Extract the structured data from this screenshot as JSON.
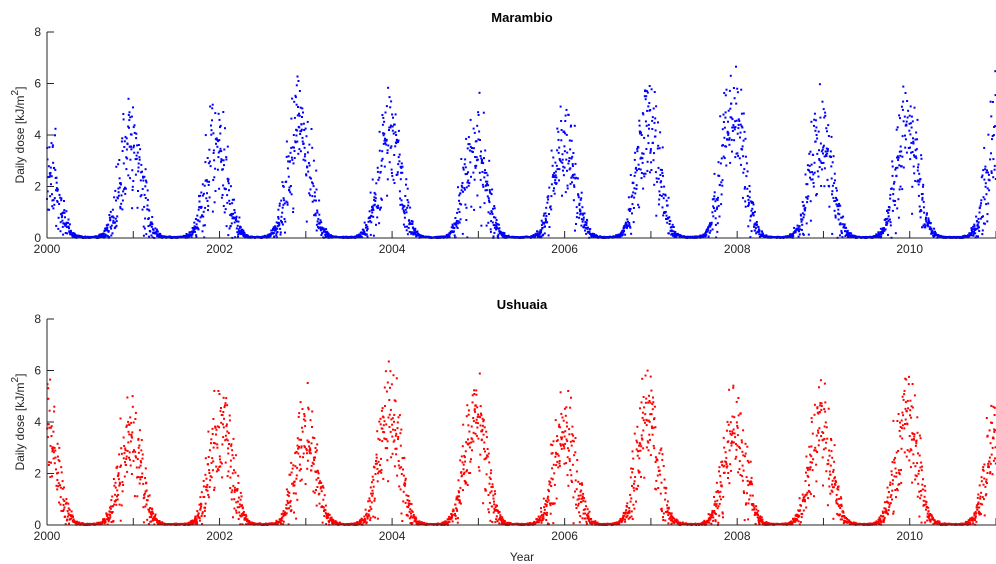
{
  "chart_data": [
    {
      "type": "scatter",
      "title": "Marambio",
      "xlabel": "",
      "ylabel": "Daily dose [kJ/m",
      "ylabel_sup": "2",
      "ylabel_close": "]",
      "xlim": [
        2000,
        2011
      ],
      "ylim": [
        0,
        8
      ],
      "xticks": [
        "2000",
        "2002",
        "2004",
        "2006",
        "2008",
        "2010"
      ],
      "yticks": [
        "0",
        "2",
        "4",
        "6",
        "8"
      ],
      "grid": false,
      "color": "#0000ff",
      "summer_peaks": [
        {
          "year": 2000.0,
          "peak": 3.3
        },
        {
          "year": 2000.97,
          "peak": 4.6
        },
        {
          "year": 2001.97,
          "peak": 4.4
        },
        {
          "year": 2002.92,
          "peak": 5.6
        },
        {
          "year": 2003.97,
          "peak": 5.2
        },
        {
          "year": 2004.97,
          "peak": 4.4
        },
        {
          "year": 2006.0,
          "peak": 4.6
        },
        {
          "year": 2006.97,
          "peak": 5.6
        },
        {
          "year": 2007.95,
          "peak": 6.3
        },
        {
          "year": 2008.97,
          "peak": 5.0
        },
        {
          "year": 2009.97,
          "peak": 5.2
        },
        {
          "year": 2011.02,
          "peak": 4.8
        }
      ]
    },
    {
      "type": "scatter",
      "title": "Ushuaia",
      "xlabel": "Year",
      "ylabel": "Daily dose [kJ/m",
      "ylabel_sup": "2",
      "ylabel_close": "]",
      "xlim": [
        2000,
        2011
      ],
      "ylim": [
        0,
        8
      ],
      "xticks": [
        "2000",
        "2002",
        "2004",
        "2006",
        "2008",
        "2010"
      ],
      "yticks": [
        "0",
        "2",
        "4",
        "6",
        "8"
      ],
      "grid": false,
      "color": "#ff0000",
      "summer_peaks": [
        {
          "year": 2000.0,
          "peak": 4.8
        },
        {
          "year": 2000.97,
          "peak": 4.2
        },
        {
          "year": 2002.02,
          "peak": 4.8
        },
        {
          "year": 2003.0,
          "peak": 4.2
        },
        {
          "year": 2003.97,
          "peak": 5.4
        },
        {
          "year": 2004.97,
          "peak": 5.0
        },
        {
          "year": 2006.0,
          "peak": 4.4
        },
        {
          "year": 2006.97,
          "peak": 5.4
        },
        {
          "year": 2007.97,
          "peak": 4.8
        },
        {
          "year": 2008.97,
          "peak": 4.8
        },
        {
          "year": 2009.97,
          "peak": 5.2
        },
        {
          "year": 2011.02,
          "peak": 4.6
        }
      ]
    }
  ]
}
